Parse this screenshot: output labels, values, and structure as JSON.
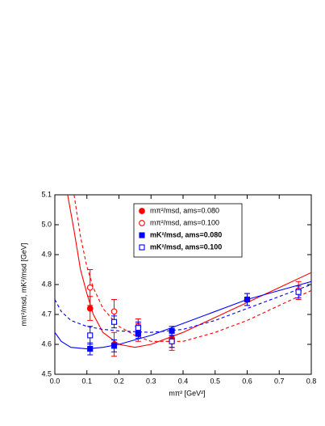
{
  "chart_data": {
    "type": "scatter",
    "y_label": "mπ²/msd, mK²/msd [GeV]",
    "x_label": "mπ² [GeV²]",
    "xlim": [
      0.0,
      0.8
    ],
    "ylim": [
      4.5,
      5.1
    ],
    "xticks": [
      {
        "value": 0.0,
        "label": "0.0"
      },
      0.1,
      0.2,
      0.3,
      0.4,
      0.5,
      0.6,
      0.7,
      {
        "value": 0.8,
        "label": "0.8"
      }
    ],
    "yticks": [
      4.5,
      4.6,
      4.7,
      4.8,
      4.9,
      {
        "value": 5.0,
        "label": "5.0"
      },
      5.1
    ],
    "series": [
      {
        "name": "mπ²/msd, ams=0.080",
        "color": "#ff0000",
        "marker": "circle",
        "filled": true,
        "x": [
          0.11,
          0.185,
          0.26,
          0.365,
          0.6
        ],
        "values": [
          4.72,
          4.6,
          4.64,
          4.62,
          4.75
        ],
        "errors": [
          0.04,
          0.04,
          0.03,
          0.03,
          0.02
        ]
      },
      {
        "name": "mπ²/msd, ams=0.100",
        "color": "#ff0000",
        "marker": "circle",
        "filled": false,
        "x": [
          0.11,
          0.185,
          0.26,
          0.365,
          0.76
        ],
        "values": [
          4.79,
          4.71,
          4.66,
          4.61,
          4.78
        ],
        "errors": [
          0.06,
          0.04,
          0.025,
          0.03,
          0.03
        ]
      },
      {
        "name": "mK²/msd, ams=0.080",
        "color": "#0000ff",
        "marker": "square",
        "filled": true,
        "x": [
          0.11,
          0.185,
          0.26,
          0.365,
          0.6
        ],
        "values": [
          4.585,
          4.595,
          4.635,
          4.645,
          4.75
        ],
        "errors": [
          0.02,
          0.02,
          0.015,
          0.015,
          0.02
        ]
      },
      {
        "name": "mK²/msd, ams=0.100",
        "color": "#0000ff",
        "marker": "square",
        "filled": false,
        "x": [
          0.11,
          0.185,
          0.26,
          0.365,
          0.76
        ],
        "values": [
          4.63,
          4.675,
          4.655,
          4.61,
          4.775
        ],
        "errors": [
          0.03,
          0.02,
          0.02,
          0.02,
          0.02
        ]
      }
    ],
    "fits": [
      {
        "color": "#ff0000",
        "dashed": false,
        "x": [
          0.04,
          0.06,
          0.08,
          0.1,
          0.12,
          0.15,
          0.2,
          0.25,
          0.3,
          0.4,
          0.5,
          0.6,
          0.7,
          0.8
        ],
        "values": [
          5.1,
          4.98,
          4.85,
          4.77,
          4.7,
          4.64,
          4.6,
          4.59,
          4.6,
          4.64,
          4.69,
          4.74,
          4.79,
          4.84
        ]
      },
      {
        "color": "#ff0000",
        "dashed": true,
        "x": [
          0.06,
          0.08,
          0.1,
          0.12,
          0.15,
          0.2,
          0.25,
          0.3,
          0.4,
          0.5,
          0.6,
          0.7,
          0.8
        ],
        "values": [
          5.1,
          4.96,
          4.86,
          4.79,
          4.72,
          4.66,
          4.63,
          4.61,
          4.61,
          4.64,
          4.68,
          4.73,
          4.78
        ]
      },
      {
        "color": "#0000ff",
        "dashed": false,
        "x": [
          0.0,
          0.02,
          0.05,
          0.1,
          0.15,
          0.2,
          0.3,
          0.4,
          0.5,
          0.6,
          0.7,
          0.8
        ],
        "values": [
          4.64,
          4.61,
          4.59,
          4.585,
          4.59,
          4.6,
          4.63,
          4.67,
          4.71,
          4.75,
          4.78,
          4.81
        ]
      },
      {
        "color": "#0000ff",
        "dashed": true,
        "x": [
          0.0,
          0.02,
          0.05,
          0.1,
          0.15,
          0.2,
          0.3,
          0.4,
          0.5,
          0.6,
          0.7,
          0.8
        ],
        "values": [
          4.75,
          4.71,
          4.68,
          4.66,
          4.65,
          4.645,
          4.64,
          4.65,
          4.68,
          4.72,
          4.76,
          4.8
        ]
      }
    ]
  }
}
